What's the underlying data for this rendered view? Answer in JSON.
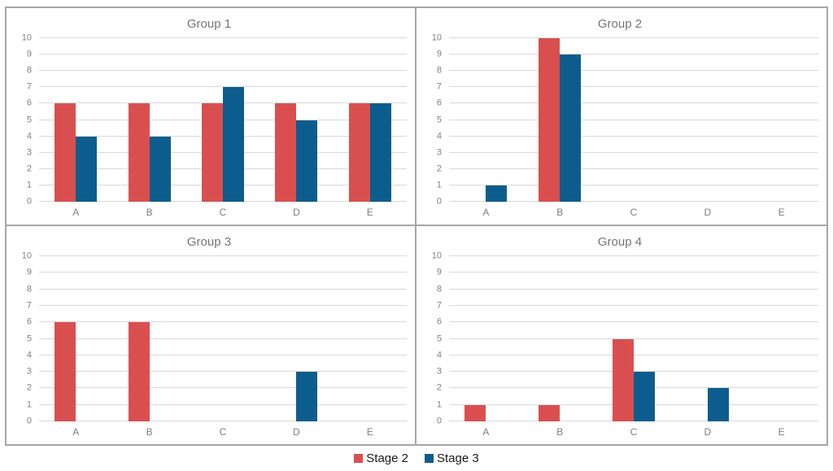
{
  "legend": {
    "position": "bottom-center",
    "items": [
      {
        "label": "Stage 2",
        "color": "#d94f4f"
      },
      {
        "label": "Stage 3",
        "color": "#0c5d8d"
      }
    ]
  },
  "colors": {
    "series_red": "#d94f4f",
    "series_blue": "#0c5d8d",
    "gridline": "#d9d9d9",
    "panel_border": "#a6a6a6",
    "title_text": "#757575",
    "tick_text": "#808080",
    "background": "#ffffff"
  },
  "chart_data": [
    {
      "type": "bar",
      "title": "Group 1",
      "categories": [
        "A",
        "B",
        "C",
        "D",
        "E"
      ],
      "series": [
        {
          "name": "Stage 2",
          "color": "#d94f4f",
          "values": [
            6,
            6,
            6,
            6,
            6
          ]
        },
        {
          "name": "Stage 3",
          "color": "#0c5d8d",
          "values": [
            4,
            4,
            7,
            5,
            6
          ]
        }
      ],
      "xlabel": "",
      "ylabel": "",
      "ylim": [
        0,
        10
      ],
      "ytick_step": 1,
      "grid": true,
      "legend_position": "shared-bottom"
    },
    {
      "type": "bar",
      "title": "Group 2",
      "categories": [
        "A",
        "B",
        "C",
        "D",
        "E"
      ],
      "series": [
        {
          "name": "Stage 2",
          "color": "#d94f4f",
          "values": [
            0,
            10,
            0,
            0,
            0
          ]
        },
        {
          "name": "Stage 3",
          "color": "#0c5d8d",
          "values": [
            1,
            9,
            0,
            0,
            0
          ]
        }
      ],
      "xlabel": "",
      "ylabel": "",
      "ylim": [
        0,
        10
      ],
      "ytick_step": 1,
      "grid": true,
      "legend_position": "shared-bottom"
    },
    {
      "type": "bar",
      "title": "Group 3",
      "categories": [
        "A",
        "B",
        "C",
        "D",
        "E"
      ],
      "series": [
        {
          "name": "Stage 2",
          "color": "#d94f4f",
          "values": [
            6,
            6,
            0,
            0,
            0
          ]
        },
        {
          "name": "Stage 3",
          "color": "#0c5d8d",
          "values": [
            0,
            0,
            0,
            3,
            0
          ]
        }
      ],
      "xlabel": "",
      "ylabel": "",
      "ylim": [
        0,
        10
      ],
      "ytick_step": 1,
      "grid": true,
      "legend_position": "shared-bottom"
    },
    {
      "type": "bar",
      "title": "Group 4",
      "categories": [
        "A",
        "B",
        "C",
        "D",
        "E"
      ],
      "series": [
        {
          "name": "Stage 2",
          "color": "#d94f4f",
          "values": [
            1,
            1,
            5,
            0,
            0
          ]
        },
        {
          "name": "Stage 3",
          "color": "#0c5d8d",
          "values": [
            0,
            0,
            3,
            2,
            0
          ]
        }
      ],
      "xlabel": "",
      "ylabel": "",
      "ylim": [
        0,
        10
      ],
      "ytick_step": 1,
      "grid": true,
      "legend_position": "shared-bottom"
    }
  ]
}
